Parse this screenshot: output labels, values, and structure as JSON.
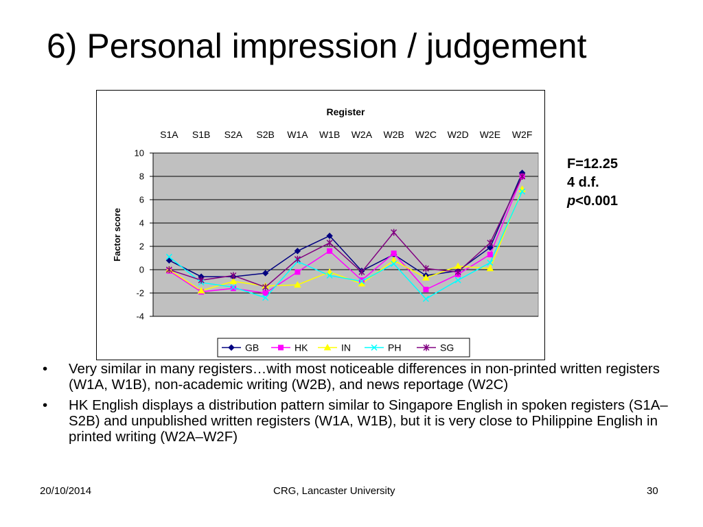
{
  "slide": {
    "title": "6) Personal impression / judgement",
    "stats": {
      "f_line": "F=12.25",
      "df_line": "4 d.f.",
      "p_italic": "p",
      "p_rest": "<0.001"
    },
    "bullet_char": "•",
    "bullets": [
      "Very similar in many registers…with most noticeable differences in non-printed written registers (W1A, W1B), non-academic writing (W2B), and news reportage (W2C)",
      "HK English displays a distribution pattern similar to Singapore English in spoken registers (S1A–S2B) and unpublished written registers (W1A, W1B), but it is very close to Philippine English in printed writing (W2A–W2F)"
    ],
    "footer": {
      "date": "20/10/2014",
      "center": "CRG, Lancaster University",
      "page": "30"
    }
  },
  "chart_data": {
    "type": "line",
    "title": "",
    "xlabel": "Register",
    "ylabel": "Factor score",
    "categories": [
      "S1A",
      "S1B",
      "S2A",
      "S2B",
      "W1A",
      "W1B",
      "W2A",
      "W2B",
      "W2C",
      "W2D",
      "W2E",
      "W2F"
    ],
    "x_axis_position": "top",
    "ylim": [
      -4,
      10
    ],
    "yticks": [
      10,
      8,
      6,
      4,
      2,
      0,
      -2,
      -4
    ],
    "grid": true,
    "plot_background": "#c0c0c0",
    "legend_position": "bottom",
    "series": [
      {
        "name": "GB",
        "color": "#000080",
        "marker": "diamond",
        "values": [
          0.8,
          -0.6,
          -0.6,
          -0.3,
          1.6,
          2.9,
          -0.1,
          1.3,
          -0.5,
          -0.1,
          1.9,
          8.3
        ]
      },
      {
        "name": "HK",
        "color": "#ff00ff",
        "marker": "square",
        "values": [
          -0.1,
          -1.9,
          -1.6,
          -2.0,
          -0.2,
          1.6,
          -0.9,
          1.4,
          -1.7,
          -0.4,
          1.3,
          8.0
        ]
      },
      {
        "name": "IN",
        "color": "#ffff00",
        "marker": "triangle",
        "values": [
          0.0,
          -1.8,
          -1.0,
          -1.4,
          -1.3,
          -0.2,
          -1.2,
          0.8,
          -0.7,
          0.3,
          0.1,
          6.9
        ]
      },
      {
        "name": "PH",
        "color": "#00ffff",
        "marker": "x",
        "values": [
          1.1,
          -1.1,
          -1.5,
          -2.4,
          0.7,
          -0.5,
          -1.0,
          0.5,
          -2.5,
          -0.9,
          0.6,
          6.7
        ]
      },
      {
        "name": "SG",
        "color": "#800080",
        "marker": "star",
        "values": [
          0.0,
          -0.9,
          -0.5,
          -1.5,
          0.9,
          2.3,
          -0.2,
          3.2,
          0.1,
          -0.2,
          2.3,
          8.0
        ]
      }
    ]
  }
}
